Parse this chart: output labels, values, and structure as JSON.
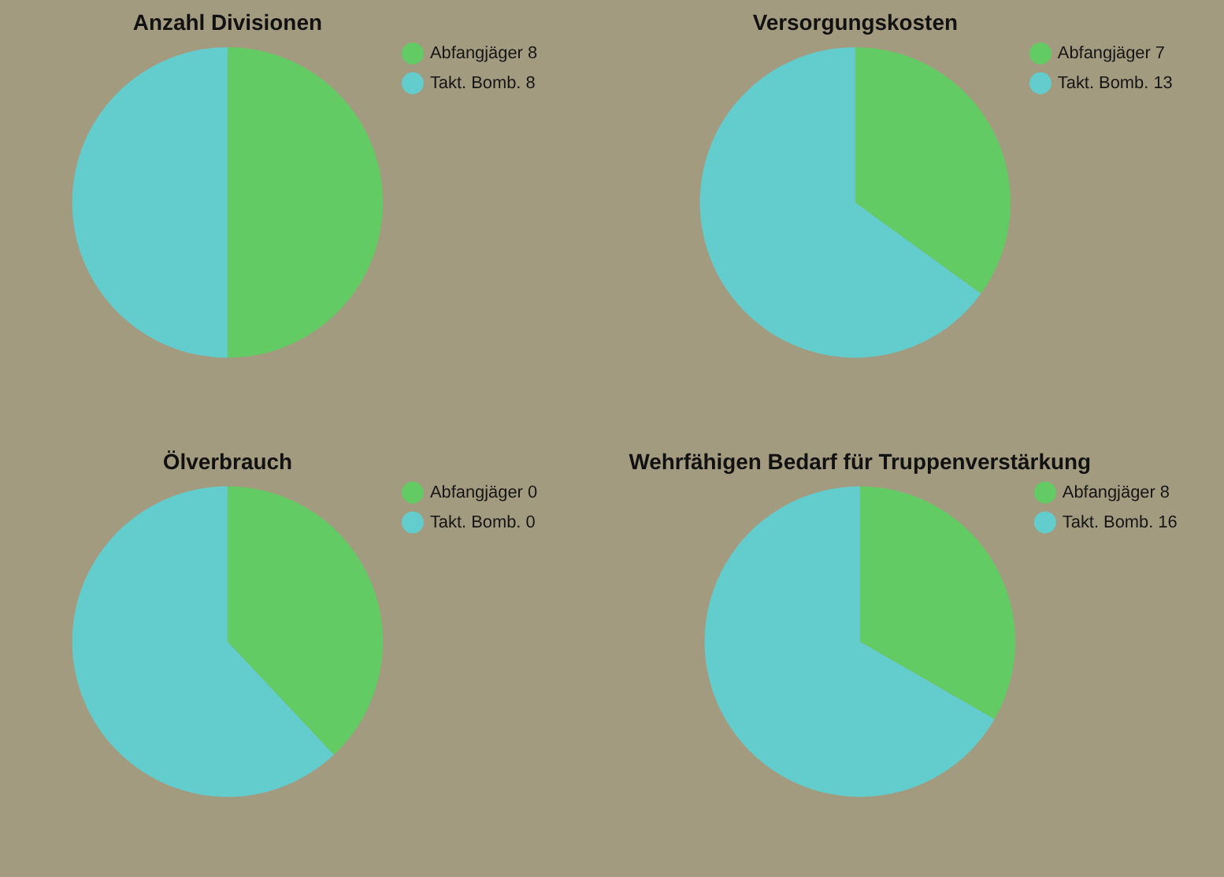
{
  "chart_data": [
    {
      "type": "pie",
      "title": "Anzahl Divisionen",
      "categories": [
        "Abfangjäger",
        "Takt. Bomb."
      ],
      "values": [
        8,
        8
      ],
      "value_labels": [
        "8",
        "8"
      ],
      "colors": [
        "#63cb63",
        "#63cccc"
      ],
      "legend": "top right"
    },
    {
      "type": "pie",
      "title": "Versorgungskosten",
      "categories": [
        "Abfangjäger",
        "Takt. Bomb."
      ],
      "values": [
        7,
        13
      ],
      "value_labels": [
        "7",
        "13"
      ],
      "colors": [
        "#63cb63",
        "#63cccc"
      ],
      "legend": "top right"
    },
    {
      "type": "pie",
      "title": "Ölverbrauch",
      "categories": [
        "Abfangjäger 0",
        "Takt. Bomb. 0"
      ],
      "values": [
        38,
        62
      ],
      "colors": [
        "#63cb63",
        "#63cccc"
      ],
      "legend": "top right"
    },
    {
      "type": "pie",
      "title": "Wehrfähigen Bedarf für Truppenverstärkung",
      "categories": [
        "Abfangjäger",
        "Takt. Bomb."
      ],
      "values": [
        8,
        16
      ],
      "value_labels": [
        "8",
        "16"
      ],
      "colors": [
        "#63cb63",
        "#63cccc"
      ],
      "legend": "top right"
    }
  ]
}
